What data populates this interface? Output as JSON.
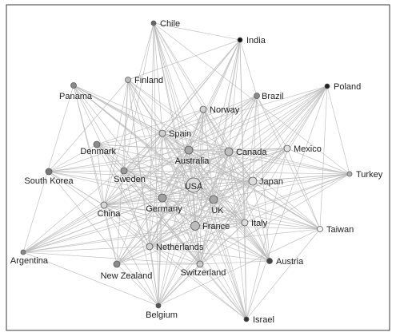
{
  "nodes": [
    {
      "id": "chile",
      "label": "Chile",
      "color": "#666666"
    },
    {
      "id": "india",
      "label": "India",
      "color": "#111111"
    },
    {
      "id": "finland",
      "label": "Finland",
      "color": "#bdbdbd"
    },
    {
      "id": "panama",
      "label": "Panama",
      "color": "#8a8a8a"
    },
    {
      "id": "brazil",
      "label": "Brazil",
      "color": "#8a8a8a"
    },
    {
      "id": "poland",
      "label": "Poland",
      "color": "#222222"
    },
    {
      "id": "norway",
      "label": "Norway",
      "color": "#d0d0d0"
    },
    {
      "id": "spain",
      "label": "Spain",
      "color": "#cfcfcf"
    },
    {
      "id": "denmark",
      "label": "Denmark",
      "color": "#8a8a8a"
    },
    {
      "id": "australia",
      "label": "Australia",
      "color": "#a8a8a8"
    },
    {
      "id": "canada",
      "label": "Canada",
      "color": "#bdbdbd"
    },
    {
      "id": "mexico",
      "label": "Mexico",
      "color": "#e0e0e0"
    },
    {
      "id": "south_korea",
      "label": "South Korea",
      "color": "#777777"
    },
    {
      "id": "sweden",
      "label": "Sweden",
      "color": "#9a9a9a"
    },
    {
      "id": "usa",
      "label": "USA",
      "color": "#dddddd"
    },
    {
      "id": "japan",
      "label": "Japan",
      "color": "#dcdcdc"
    },
    {
      "id": "turkey",
      "label": "Turkey",
      "color": "#b0b0b0"
    },
    {
      "id": "china",
      "label": "China",
      "color": "#d8d8d8"
    },
    {
      "id": "germany",
      "label": "Germany",
      "color": "#a0a0a0"
    },
    {
      "id": "uk",
      "label": "UK",
      "color": "#a8a8a8"
    },
    {
      "id": "france",
      "label": "France",
      "color": "#bdbdbd"
    },
    {
      "id": "italy",
      "label": "Italy",
      "color": "#dcdcdc"
    },
    {
      "id": "taiwan",
      "label": "Taiwan",
      "color": "#f2f2f2"
    },
    {
      "id": "netherlands",
      "label": "Netherlands",
      "color": "#d0d0d0"
    },
    {
      "id": "argentina",
      "label": "Argentina",
      "color": "#8a8a8a"
    },
    {
      "id": "new_zealand",
      "label": "New Zealand",
      "color": "#8a8a8a"
    },
    {
      "id": "switzerland",
      "label": "Switzerland",
      "color": "#c8c8c8"
    },
    {
      "id": "austria",
      "label": "Austria",
      "color": "#444444"
    },
    {
      "id": "belgium",
      "label": "Belgium",
      "color": "#555555"
    },
    {
      "id": "israel",
      "label": "Israel",
      "color": "#333333"
    }
  ]
}
